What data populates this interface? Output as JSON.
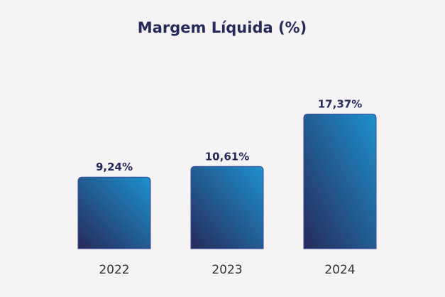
{
  "chart_data": {
    "type": "bar",
    "title": "Margem Líquida (%)",
    "categories": [
      "2022",
      "2023",
      "2024"
    ],
    "values": [
      9.24,
      10.61,
      17.37
    ],
    "labels": [
      "9,24%",
      "10,61%",
      "17,37%"
    ],
    "xlabel": "",
    "ylabel": "",
    "ylim": [
      0,
      22
    ],
    "grid": false,
    "colors": {
      "title": "#262a5a",
      "bar_dark": "#262a5a",
      "bar_light": "#1e90cc",
      "axis": "#2a8fd0",
      "tick": "#333333"
    }
  }
}
